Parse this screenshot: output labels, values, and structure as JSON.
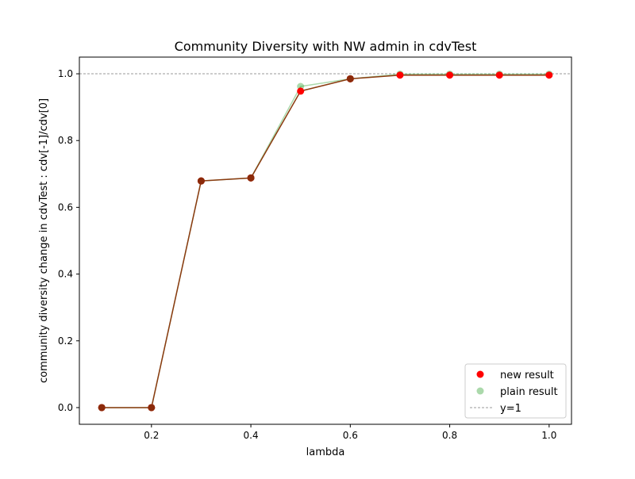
{
  "chart_data": {
    "type": "scatter",
    "title": "Community Diversity with NW admin in cdvTest",
    "xlabel": "lambda",
    "ylabel": "community diversity change in cdvTest : cdv[-1]/cdv[0]",
    "xlim": [
      0.055,
      1.045
    ],
    "ylim": [
      -0.05,
      1.05
    ],
    "xticks": [
      0.2,
      0.4,
      0.6,
      0.8,
      1.0
    ],
    "xtick_labels": [
      "0.2",
      "0.4",
      "0.6",
      "0.8",
      "1.0"
    ],
    "yticks": [
      0.0,
      0.2,
      0.4,
      0.6,
      0.8,
      1.0
    ],
    "ytick_labels": [
      "0.0",
      "0.2",
      "0.4",
      "0.6",
      "0.8",
      "1.0"
    ],
    "grid": false,
    "legend_position": "lower-right",
    "x": [
      0.1,
      0.2,
      0.3,
      0.4,
      0.5,
      0.6,
      0.7,
      0.8,
      0.9,
      1.0
    ],
    "series": [
      {
        "name": "plain result",
        "values": [
          0.0,
          0.0,
          0.679,
          0.688,
          0.962,
          0.985,
          0.999,
          0.999,
          0.999,
          0.999
        ],
        "color": "#2ca02c",
        "opacity": 0.4
      },
      {
        "name": "new result",
        "values": [
          0.0,
          0.0,
          0.679,
          0.688,
          0.948,
          0.985,
          0.996,
          0.996,
          0.996,
          0.996
        ],
        "color": "#ff0000",
        "line_color": "#8b3a0f"
      }
    ],
    "reference_line": {
      "name": "y=1",
      "y": 1.0,
      "color": "#999999"
    }
  }
}
